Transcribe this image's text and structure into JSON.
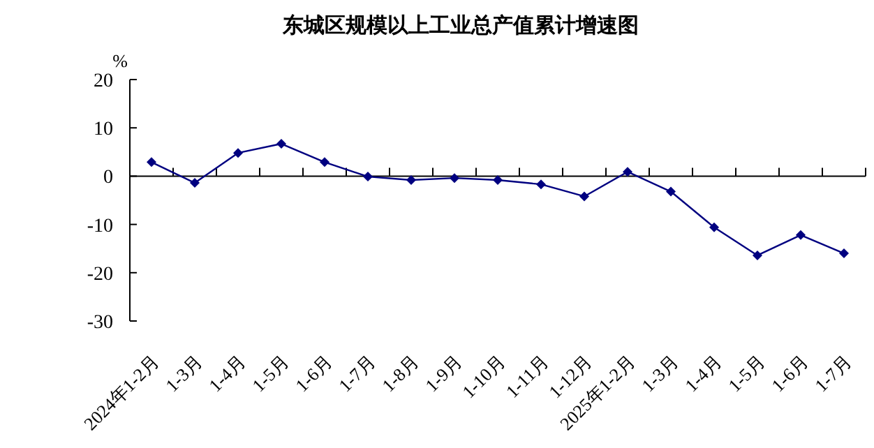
{
  "chart_data": {
    "type": "line",
    "title": "东城区规模以上工业总产值累计增速图",
    "ylabel": "%",
    "categories": [
      "2024年1-2月",
      "1-3月",
      "1-4月",
      "1-5月",
      "1-6月",
      "1-7月",
      "1-8月",
      "1-9月",
      "1-10月",
      "1-11月",
      "1-12月",
      "2025年1-2月",
      "1-3月",
      "1-4月",
      "1-5月",
      "1-6月",
      "1-7月"
    ],
    "series": [
      {
        "color": "#000080",
        "values": [
          2.9,
          -1.4,
          4.8,
          6.7,
          2.9,
          -0.1,
          -0.8,
          -0.4,
          -0.8,
          -1.7,
          -4.2,
          0.9,
          -3.2,
          -10.6,
          -16.4,
          -12.2,
          -16.0
        ]
      }
    ],
    "ylim": [
      -30,
      20
    ],
    "yticks": [
      -30,
      -20,
      -10,
      0,
      10,
      20
    ],
    "marker": "diamond",
    "line_style": "solid"
  }
}
